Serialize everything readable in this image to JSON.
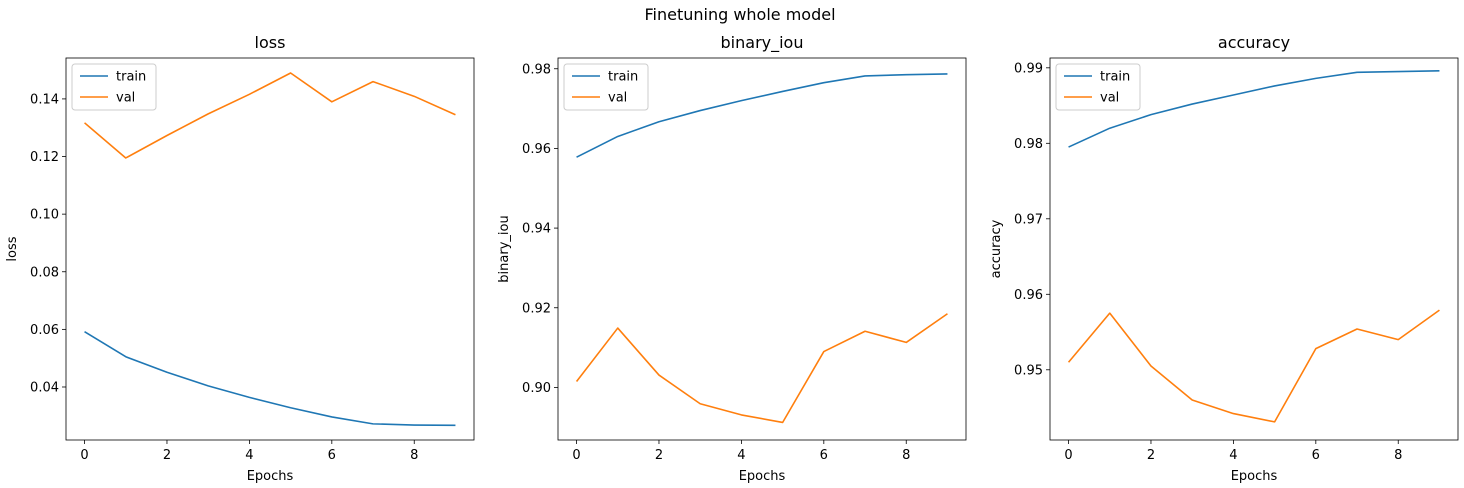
{
  "figure": {
    "title": "Finetuning whole model"
  },
  "colors": {
    "train": "#1f77b4",
    "val": "#ff7f0e",
    "axes": "#000000",
    "legend_border": "#cccccc"
  },
  "chart_data": [
    {
      "type": "line",
      "title": "loss",
      "xlabel": "Epochs",
      "ylabel": "loss",
      "x": [
        0,
        1,
        2,
        3,
        4,
        5,
        6,
        7,
        8,
        9
      ],
      "xlim": [
        -0.45,
        9.45
      ],
      "ylim": [
        0.0216,
        0.1542
      ],
      "xticks": [
        0,
        2,
        4,
        6,
        8
      ],
      "yticks": [
        0.04,
        0.06,
        0.08,
        0.1,
        0.12,
        0.14
      ],
      "ytick_labels": [
        "0.04",
        "0.06",
        "0.08",
        "0.10",
        "0.12",
        "0.14"
      ],
      "legend_position": "top-left",
      "grid": false,
      "series": [
        {
          "name": "train",
          "color": "#1f77b4",
          "values": [
            0.0592,
            0.0505,
            0.0451,
            0.0404,
            0.0364,
            0.0328,
            0.0296,
            0.0272,
            0.0268,
            0.0267
          ]
        },
        {
          "name": "val",
          "color": "#ff7f0e",
          "values": [
            0.1317,
            0.1195,
            0.1273,
            0.1348,
            0.1416,
            0.149,
            0.139,
            0.146,
            0.1409,
            0.1345
          ]
        }
      ]
    },
    {
      "type": "line",
      "title": "binary_iou",
      "xlabel": "Epochs",
      "ylabel": "binary_iou",
      "x": [
        0,
        1,
        2,
        3,
        4,
        5,
        6,
        7,
        8,
        9
      ],
      "xlim": [
        -0.45,
        9.45
      ],
      "ylim": [
        0.8868,
        0.9827
      ],
      "xticks": [
        0,
        2,
        4,
        6,
        8
      ],
      "yticks": [
        0.9,
        0.92,
        0.94,
        0.96,
        0.98
      ],
      "ytick_labels": [
        "0.90",
        "0.92",
        "0.94",
        "0.96",
        "0.98"
      ],
      "legend_position": "top-left",
      "grid": false,
      "series": [
        {
          "name": "train",
          "color": "#1f77b4",
          "values": [
            0.9578,
            0.963,
            0.9667,
            0.9695,
            0.972,
            0.9743,
            0.9765,
            0.9782,
            0.9785,
            0.9787
          ]
        },
        {
          "name": "val",
          "color": "#ff7f0e",
          "values": [
            0.9015,
            0.9149,
            0.9031,
            0.8959,
            0.8931,
            0.8912,
            0.909,
            0.9141,
            0.9113,
            0.9185
          ]
        }
      ]
    },
    {
      "type": "line",
      "title": "accuracy",
      "xlabel": "Epochs",
      "ylabel": "accuracy",
      "x": [
        0,
        1,
        2,
        3,
        4,
        5,
        6,
        7,
        8,
        9
      ],
      "xlim": [
        -0.45,
        9.45
      ],
      "ylim": [
        0.9407,
        0.9913
      ],
      "xticks": [
        0,
        2,
        4,
        6,
        8
      ],
      "yticks": [
        0.95,
        0.96,
        0.97,
        0.98,
        0.99
      ],
      "ytick_labels": [
        "0.95",
        "0.96",
        "0.97",
        "0.98",
        "0.99"
      ],
      "legend_position": "top-left",
      "grid": false,
      "series": [
        {
          "name": "train",
          "color": "#1f77b4",
          "values": [
            0.9795,
            0.982,
            0.9838,
            0.9852,
            0.9864,
            0.9876,
            0.9886,
            0.9894,
            0.9895,
            0.9896
          ]
        },
        {
          "name": "val",
          "color": "#ff7f0e",
          "values": [
            0.951,
            0.9575,
            0.9505,
            0.946,
            0.9442,
            0.9431,
            0.9528,
            0.9554,
            0.954,
            0.9579
          ]
        }
      ]
    }
  ]
}
